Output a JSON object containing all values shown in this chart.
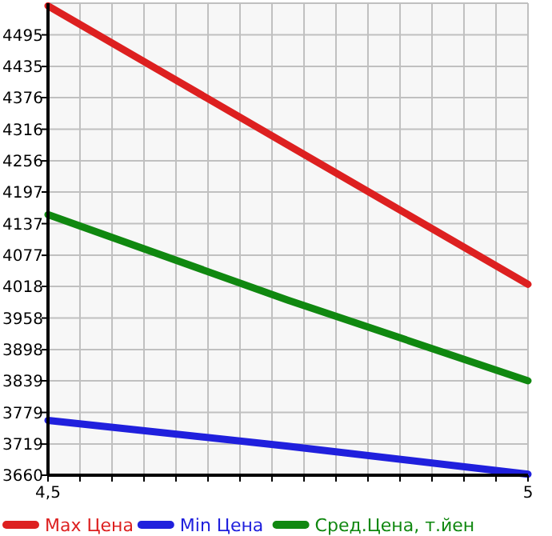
{
  "chart_data": {
    "type": "line",
    "x": [
      4.5,
      4.75,
      5
    ],
    "series": [
      {
        "name": "Max Цена",
        "color": "#dd2020",
        "values": [
          4550,
          4286,
          4022
        ]
      },
      {
        "name": "Min Цена",
        "color": "#2020dd",
        "values": [
          3764,
          3715,
          3662
        ]
      },
      {
        "name": "Сред.Цена, т.йен",
        "color": "#108810",
        "values": [
          4154,
          3992,
          3839
        ]
      }
    ],
    "xlim": [
      4.5,
      5
    ],
    "xticks": [
      {
        "value": 4.5,
        "label": "4,5"
      },
      {
        "value": 4.5333,
        "label": null
      },
      {
        "value": 4.5667,
        "label": null
      },
      {
        "value": 4.6,
        "label": null
      },
      {
        "value": 4.6333,
        "label": null
      },
      {
        "value": 4.6667,
        "label": null
      },
      {
        "value": 4.7,
        "label": null
      },
      {
        "value": 4.7333,
        "label": null
      },
      {
        "value": 4.7667,
        "label": null
      },
      {
        "value": 4.8,
        "label": null
      },
      {
        "value": 4.8333,
        "label": null
      },
      {
        "value": 4.8667,
        "label": null
      },
      {
        "value": 4.9,
        "label": null
      },
      {
        "value": 4.9333,
        "label": null
      },
      {
        "value": 4.9667,
        "label": null
      },
      {
        "value": 5,
        "label": "5"
      }
    ],
    "ylim": [
      3660,
      4555
    ],
    "yticks": [
      3660,
      3719,
      3779,
      3839,
      3898,
      3958,
      4018,
      4077,
      4137,
      4197,
      4256,
      4316,
      4376,
      4435,
      4495
    ],
    "grid": true,
    "legend": "bottom",
    "marker": "none",
    "line_style": "solid"
  }
}
